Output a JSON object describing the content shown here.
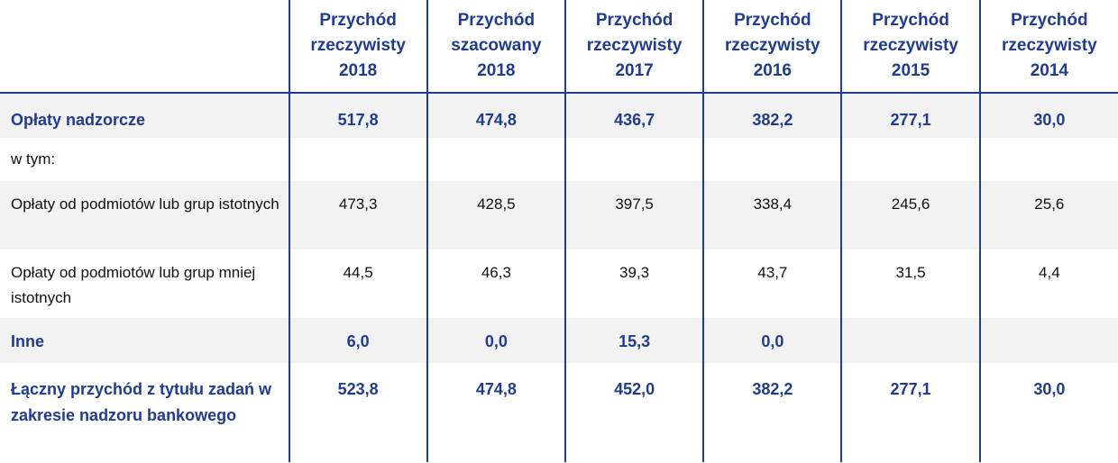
{
  "table": {
    "headers": [
      "Przychód rzeczywisty 2018",
      "Przychód szacowany 2018",
      "Przychód rzeczywisty 2017",
      "Przychód rzeczywisty 2016",
      "Przychód rzeczywisty 2015",
      "Przychód rzeczywisty 2014"
    ],
    "header_lines": [
      [
        "Przychód",
        "rzeczywisty",
        "2018"
      ],
      [
        "Przychód",
        "szacowany",
        "2018"
      ],
      [
        "Przychód",
        "rzeczywisty",
        "2017"
      ],
      [
        "Przychód",
        "rzeczywisty",
        "2016"
      ],
      [
        "Przychód",
        "rzeczywisty",
        "2015"
      ],
      [
        "Przychód",
        "rzeczywisty",
        "2014"
      ]
    ],
    "rows": [
      {
        "label": "Opłaty nadzorcze",
        "values": [
          "517,8",
          "474,8",
          "436,7",
          "382,2",
          "277,1",
          "30,0"
        ]
      },
      {
        "label": "w tym:",
        "values": [
          "",
          "",
          "",
          "",
          "",
          ""
        ]
      },
      {
        "label": "Opłaty od podmiotów lub grup istotnych",
        "values": [
          "473,3",
          "428,5",
          "397,5",
          "338,4",
          "245,6",
          "25,6"
        ]
      },
      {
        "label": "Opłaty od podmiotów lub grup mniej istotnych",
        "values": [
          "44,5",
          "46,3",
          "39,3",
          "43,7",
          "31,5",
          "4,4"
        ]
      },
      {
        "label": "Inne",
        "values": [
          "6,0",
          "0,0",
          "15,3",
          "0,0",
          "",
          ""
        ]
      },
      {
        "label": "Łączny przychód z tytułu zadań w zakresie nadzoru bankowego",
        "values": [
          "523,8",
          "474,8",
          "452,0",
          "382,2",
          "277,1",
          "30,0"
        ]
      }
    ]
  },
  "colors": {
    "accent": "#1f3c8f",
    "shade": "#f2f2f2",
    "text": "#111111"
  }
}
